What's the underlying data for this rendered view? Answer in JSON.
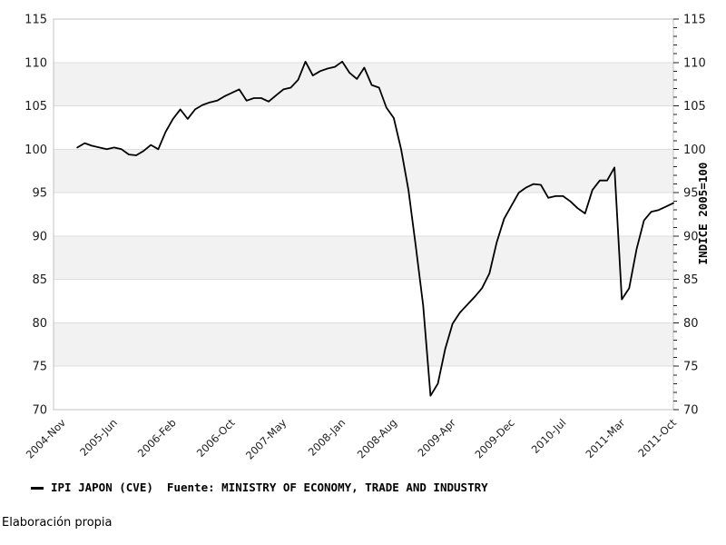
{
  "chart_data": {
    "type": "line",
    "title": "",
    "series": [
      {
        "name": "IPI JAPON (CVE)",
        "color": "#000000",
        "start_month": "2005-01",
        "end_month": "2011-10",
        "values": [
          100.2,
          100.7,
          100.4,
          100.2,
          100.0,
          100.2,
          100.0,
          99.4,
          99.3,
          99.8,
          100.5,
          100.0,
          102.0,
          103.5,
          104.6,
          103.5,
          104.6,
          105.1,
          105.4,
          105.6,
          106.1,
          106.5,
          106.9,
          105.6,
          105.9,
          105.9,
          105.5,
          106.2,
          106.9,
          107.1,
          108.0,
          110.1,
          108.5,
          109.0,
          109.3,
          109.5,
          110.1,
          108.8,
          108.1,
          109.4,
          107.4,
          107.1,
          104.8,
          103.6,
          100.0,
          95.3,
          88.8,
          82.0,
          71.6,
          73.0,
          77.0,
          79.9,
          81.2,
          82.1,
          83.0,
          84.0,
          85.7,
          89.3,
          92.0,
          93.5,
          95.0,
          95.6,
          96.0,
          95.9,
          94.4,
          94.6,
          94.6,
          94.0,
          93.2,
          92.6,
          95.3,
          96.4,
          96.4,
          97.9,
          82.7,
          84.0,
          88.5,
          91.8,
          92.8,
          93.0,
          93.4,
          93.8
        ]
      }
    ],
    "x_tick_labels": [
      "2004-Nov",
      "2005-Jun",
      "2006-Feb",
      "2006-Oct",
      "2007-May",
      "2008-Jan",
      "2008-Aug",
      "2009-Apr",
      "2009-Dec",
      "2010-Jul",
      "2011-Mar",
      "2011-Oct"
    ],
    "x_tick_month_offsets": [
      0,
      7,
      15,
      23,
      30,
      38,
      45,
      53,
      61,
      68,
      76,
      83
    ],
    "x_total_months": 83,
    "series_start_month_offset": 2,
    "ylim": [
      70,
      115
    ],
    "y_tick_step": 5,
    "y_minor_tick_step": 1,
    "right_axis_label": "INDICE 2005=100",
    "grid": true,
    "legend_position": "bottom-left",
    "band_color": "#f2f2f2",
    "grid_color": "#dedede",
    "border_color": "#c0c0c0",
    "tick_color": "#222222",
    "line_color": "#000000"
  },
  "legend": {
    "text": "IPI JAPON (CVE)  Fuente: MINISTRY OF ECONOMY, TRADE AND INDUSTRY"
  },
  "footer": {
    "text": "Elaboración propia"
  }
}
